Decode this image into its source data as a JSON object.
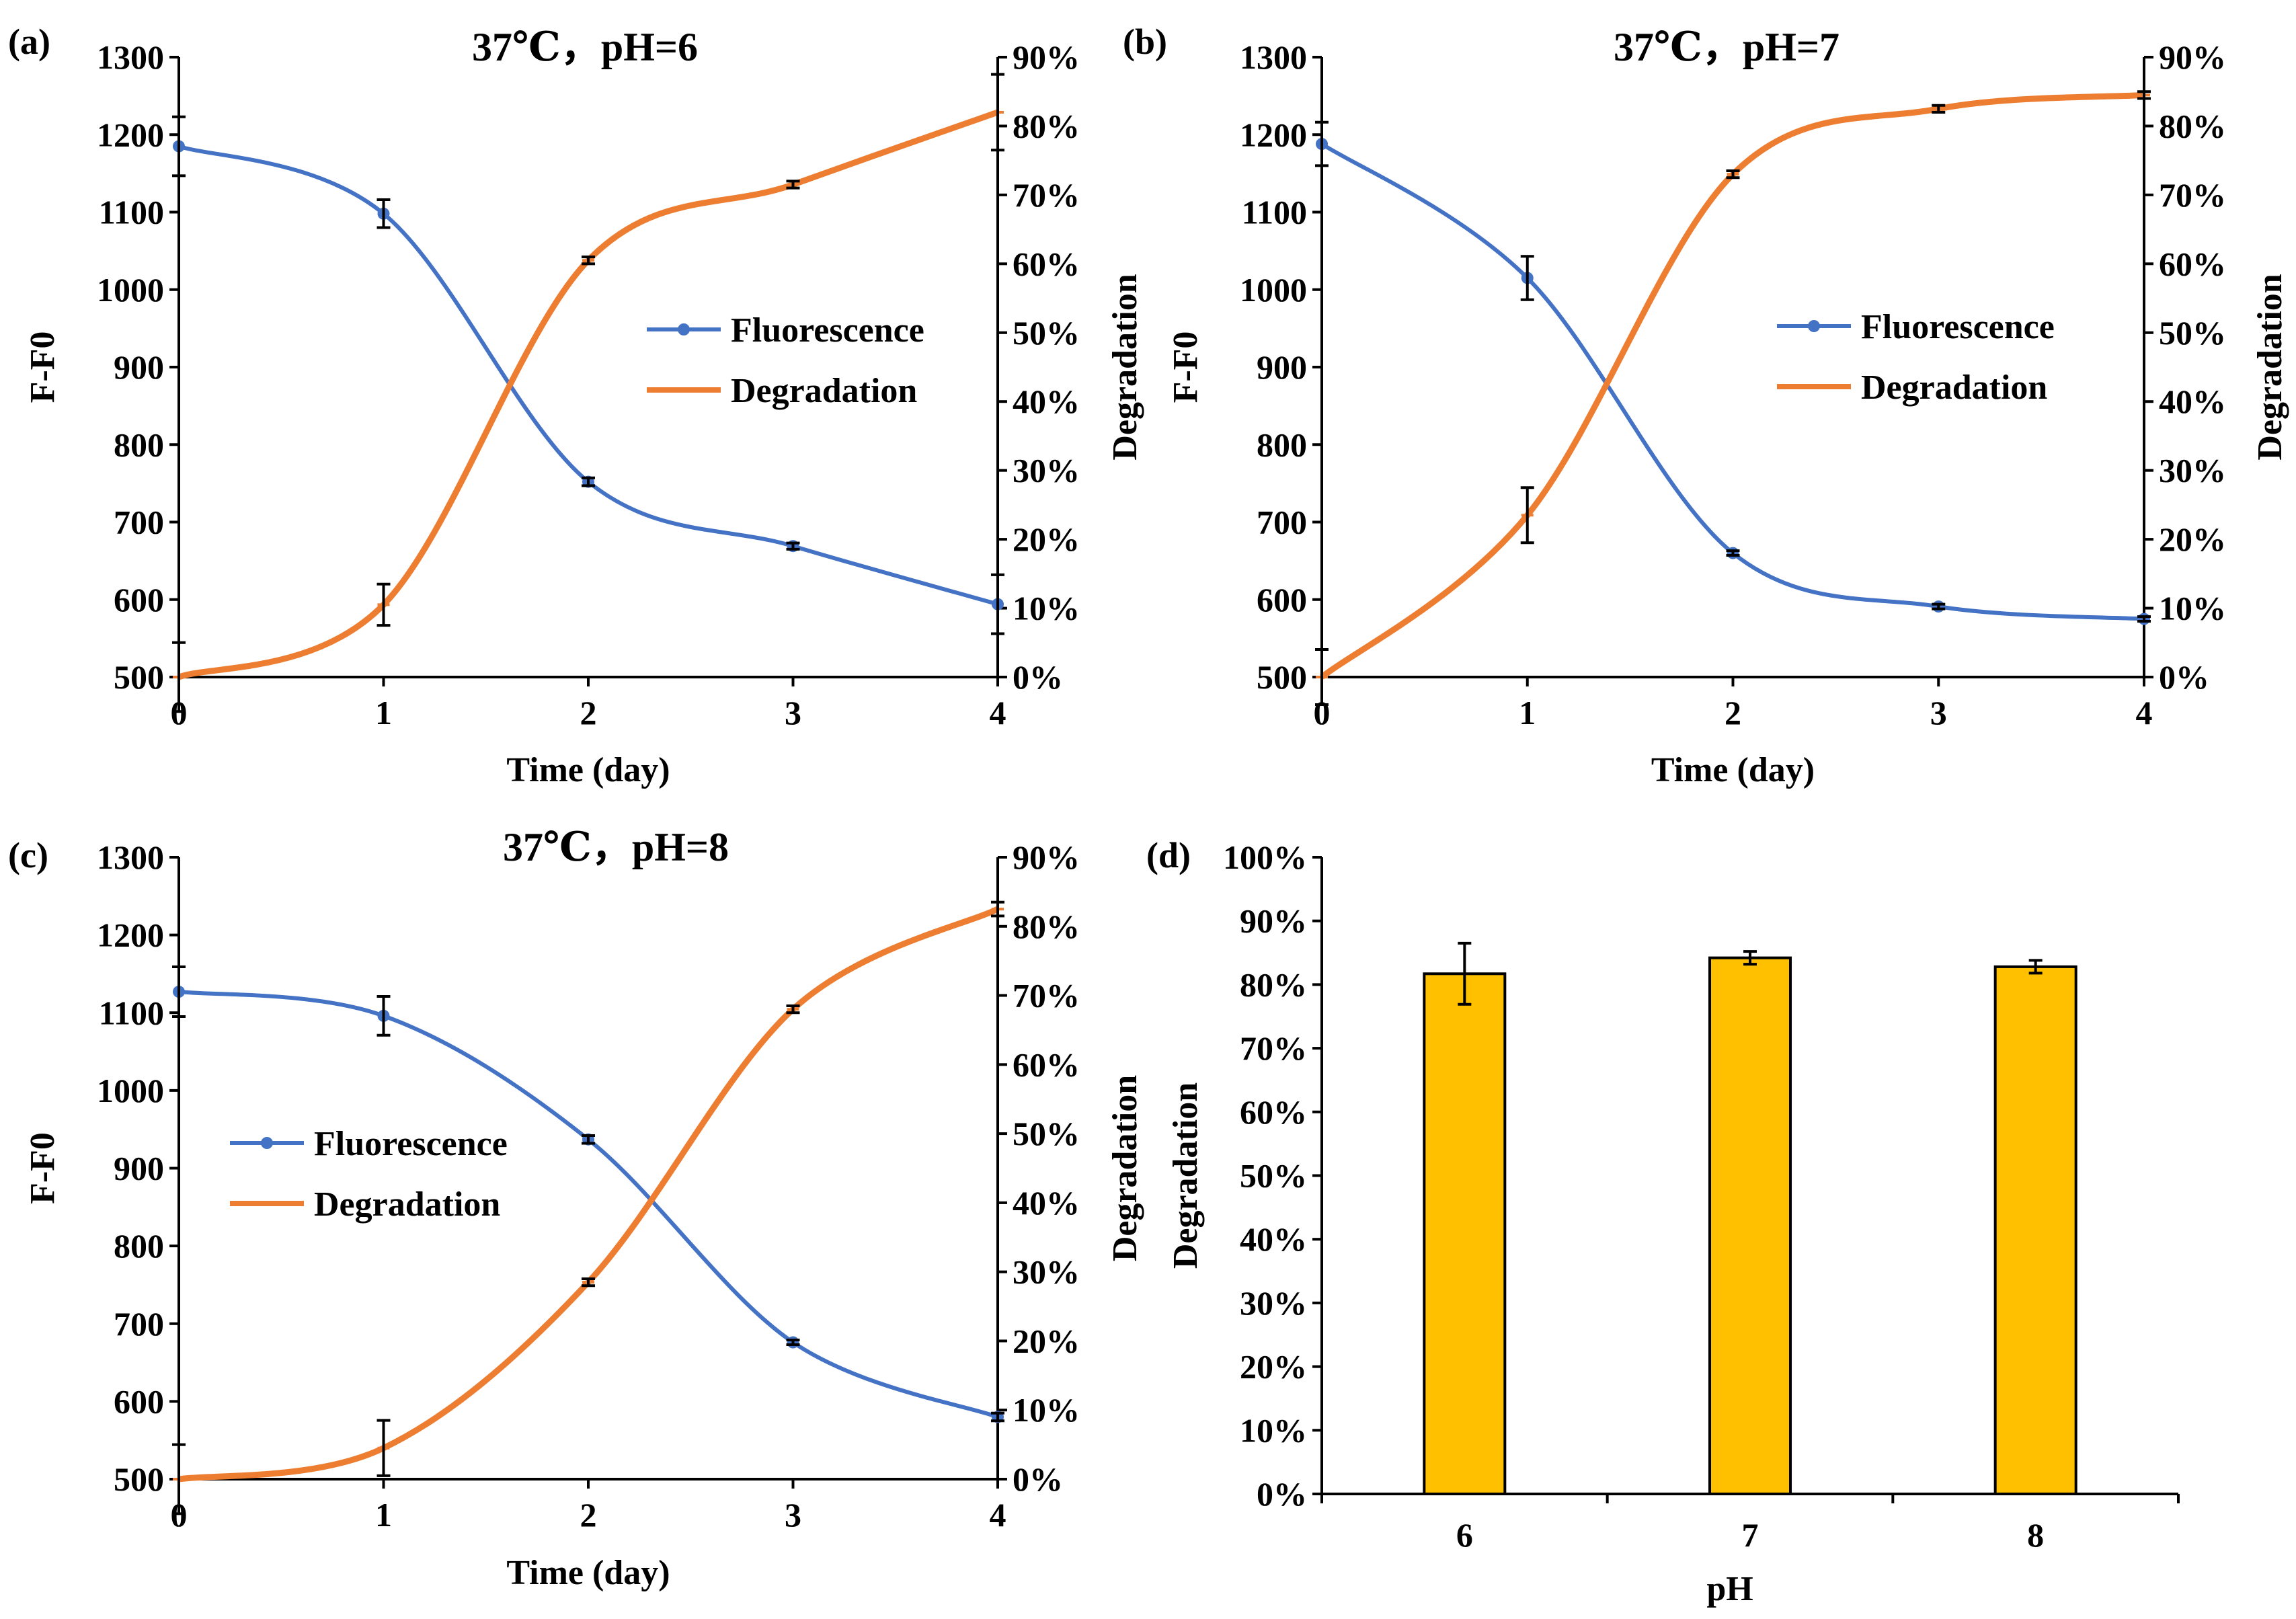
{
  "colors": {
    "fluorescence": "#4472C4",
    "degradation": "#ED7D31",
    "bar": "#FFC000",
    "bar_edge": "#000000"
  },
  "chart_data": [
    {
      "panel": "(a)",
      "type": "line",
      "title": "37℃，pH=6",
      "xlabel": "Time (day)",
      "ylabel": "F-F0",
      "y2label": "Degradation",
      "x": [
        0,
        1,
        2,
        3,
        4
      ],
      "x_ticks": [
        "0",
        "1",
        "2",
        "3",
        "4"
      ],
      "ylim": [
        500,
        1300
      ],
      "y_ticks": [
        "500",
        "600",
        "700",
        "800",
        "900",
        "1000",
        "1100",
        "1200",
        "1300"
      ],
      "y2lim": [
        0,
        90
      ],
      "y2_ticks": [
        "0%",
        "10%",
        "20%",
        "30%",
        "40%",
        "50%",
        "60%",
        "70%",
        "80%",
        "90%"
      ],
      "legend": {
        "position": "center-right",
        "entries": [
          "Fluorescence",
          "Degradation"
        ]
      },
      "series": [
        {
          "name": "Fluorescence",
          "axis": "left",
          "values": [
            1185,
            1098,
            752,
            669,
            594
          ],
          "errors": [
            38,
            18,
            5,
            4,
            38
          ]
        },
        {
          "name": "Degradation",
          "axis": "right",
          "values": [
            0,
            10.5,
            60.5,
            71.5,
            82
          ],
          "errors": [
            5,
            3,
            0.5,
            0.5,
            5.5
          ]
        }
      ]
    },
    {
      "panel": "(b)",
      "type": "line",
      "title": "37℃，pH=7",
      "xlabel": "Time (day)",
      "ylabel": "F-F0",
      "y2label": "Degradation",
      "x": [
        0,
        1,
        2,
        3,
        4
      ],
      "x_ticks": [
        "0",
        "1",
        "2",
        "3",
        "4"
      ],
      "ylim": [
        500,
        1300
      ],
      "y_ticks": [
        "500",
        "600",
        "700",
        "800",
        "900",
        "1000",
        "1100",
        "1200",
        "1300"
      ],
      "y2lim": [
        0,
        90
      ],
      "y2_ticks": [
        "0%",
        "10%",
        "20%",
        "30%",
        "40%",
        "50%",
        "60%",
        "70%",
        "80%",
        "90%"
      ],
      "legend": {
        "position": "center-right",
        "entries": [
          "Fluorescence",
          "Degradation"
        ]
      },
      "series": [
        {
          "name": "Fluorescence",
          "axis": "left",
          "values": [
            1188,
            1015,
            660,
            591,
            575
          ],
          "errors": [
            28,
            28,
            3,
            3,
            3
          ]
        },
        {
          "name": "Degradation",
          "axis": "right",
          "values": [
            0,
            23.5,
            73,
            82.5,
            84.5
          ],
          "errors": [
            4,
            4,
            0.5,
            0.5,
            0.5
          ]
        }
      ]
    },
    {
      "panel": "(c)",
      "type": "line",
      "title": "37℃，pH=8",
      "xlabel": "Time (day)",
      "ylabel": "F-F0",
      "y2label": "Degradation",
      "x": [
        0,
        1,
        2,
        3,
        4
      ],
      "x_ticks": [
        "0",
        "1",
        "2",
        "3",
        "4"
      ],
      "ylim": [
        500,
        1300
      ],
      "y_ticks": [
        "500",
        "600",
        "700",
        "800",
        "900",
        "1000",
        "1100",
        "1200",
        "1300"
      ],
      "y2lim": [
        0,
        90
      ],
      "y2_ticks": [
        "0%",
        "10%",
        "20%",
        "30%",
        "40%",
        "50%",
        "60%",
        "70%",
        "80%",
        "90%"
      ],
      "legend": {
        "position": "center-left",
        "entries": [
          "Fluorescence",
          "Degradation"
        ]
      },
      "series": [
        {
          "name": "Fluorescence",
          "axis": "left",
          "values": [
            1127,
            1096,
            937,
            676,
            580
          ],
          "errors": [
            32,
            25,
            5,
            3,
            5
          ]
        },
        {
          "name": "Degradation",
          "axis": "right",
          "values": [
            0,
            4.5,
            28.5,
            68,
            82.5
          ],
          "errors": [
            5,
            4,
            0.5,
            0.5,
            1
          ]
        }
      ]
    },
    {
      "panel": "(d)",
      "type": "bar",
      "xlabel": "pH",
      "ylabel": "Degradation",
      "categories": [
        "6",
        "7",
        "8"
      ],
      "values": [
        81.7,
        84.2,
        82.8
      ],
      "errors": [
        4.8,
        1.0,
        1.0
      ],
      "ylim": [
        0,
        100
      ],
      "y_ticks": [
        "0%",
        "10%",
        "20%",
        "30%",
        "40%",
        "50%",
        "60%",
        "70%",
        "80%",
        "90%",
        "100%"
      ]
    }
  ]
}
